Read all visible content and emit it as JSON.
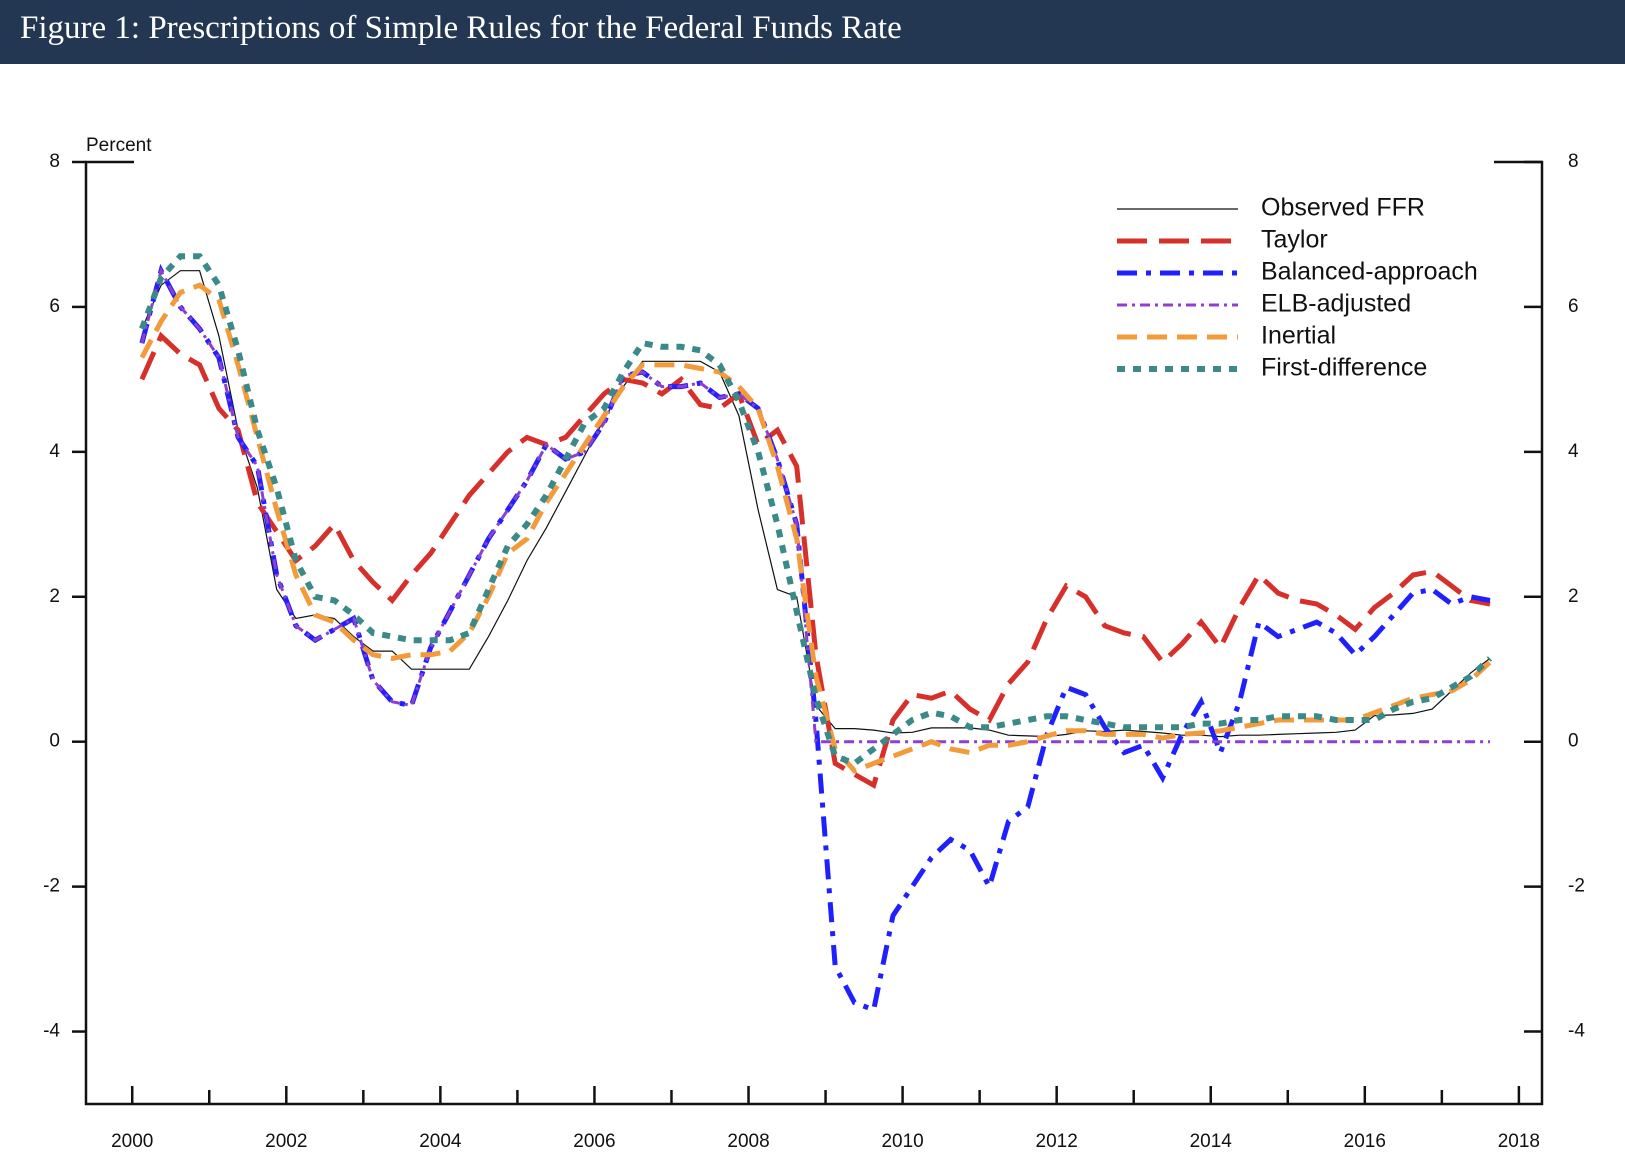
{
  "chart_data": {
    "type": "line",
    "title": "Figure 1: Prescriptions of Simple Rules for the Federal Funds Rate",
    "ylabel": "Percent",
    "xlim": [
      1999.4,
      2018.3
    ],
    "xticks": [
      2000,
      2002,
      2004,
      2006,
      2008,
      2010,
      2012,
      2014,
      2016,
      2018
    ],
    "xticks_minor": [
      2001,
      2003,
      2005,
      2007,
      2009,
      2011,
      2013,
      2015,
      2017
    ],
    "ylim": [
      -5,
      8
    ],
    "yticks": [
      -4,
      -2,
      0,
      2,
      4,
      6,
      8
    ],
    "legend": "upper right",
    "x": [
      2000.125,
      2000.375,
      2000.625,
      2000.875,
      2001.125,
      2001.375,
      2001.625,
      2001.875,
      2002.125,
      2002.375,
      2002.625,
      2002.875,
      2003.125,
      2003.375,
      2003.625,
      2003.875,
      2004.125,
      2004.375,
      2004.625,
      2004.875,
      2005.125,
      2005.375,
      2005.625,
      2005.875,
      2006.125,
      2006.375,
      2006.625,
      2006.875,
      2007.125,
      2007.375,
      2007.625,
      2007.875,
      2008.125,
      2008.375,
      2008.625,
      2008.875,
      2009.125,
      2009.375,
      2009.625,
      2009.875,
      2010.125,
      2010.375,
      2010.625,
      2010.875,
      2011.125,
      2011.375,
      2011.625,
      2011.875,
      2012.125,
      2012.375,
      2012.625,
      2012.875,
      2013.125,
      2013.375,
      2013.625,
      2013.875,
      2014.125,
      2014.375,
      2014.625,
      2014.875,
      2015.125,
      2015.375,
      2015.625,
      2015.875,
      2016.125,
      2016.375,
      2016.625,
      2016.875,
      2017.125,
      2017.375,
      2017.625
    ],
    "series": [
      {
        "name": "Observed FFR",
        "color": "#111111",
        "width": 1.2,
        "dash": "none",
        "values": [
          5.7,
          6.3,
          6.5,
          6.5,
          5.6,
          4.3,
          3.5,
          2.1,
          1.7,
          1.75,
          1.7,
          1.45,
          1.25,
          1.25,
          1.0,
          1.0,
          1.0,
          1.0,
          1.45,
          1.95,
          2.5,
          2.95,
          3.45,
          3.95,
          4.45,
          4.9,
          5.25,
          5.25,
          5.25,
          5.25,
          5.1,
          4.5,
          3.2,
          2.1,
          2.0,
          0.5,
          0.18,
          0.18,
          0.16,
          0.12,
          0.13,
          0.19,
          0.19,
          0.19,
          0.16,
          0.09,
          0.08,
          0.07,
          0.1,
          0.15,
          0.14,
          0.16,
          0.14,
          0.12,
          0.09,
          0.09,
          0.07,
          0.09,
          0.09,
          0.1,
          0.11,
          0.12,
          0.13,
          0.16,
          0.36,
          0.37,
          0.39,
          0.45,
          0.7,
          0.95,
          1.15
        ]
      },
      {
        "name": "Taylor",
        "color": "#d7302a",
        "width": 5,
        "dash": "30 12",
        "values": [
          5.0,
          5.6,
          5.35,
          5.2,
          4.6,
          4.3,
          3.3,
          2.9,
          2.5,
          2.7,
          3.0,
          2.5,
          2.2,
          1.95,
          2.3,
          2.6,
          3.0,
          3.4,
          3.7,
          4.0,
          4.2,
          4.1,
          4.2,
          4.5,
          4.8,
          5.0,
          4.95,
          4.8,
          5.0,
          4.65,
          4.6,
          4.8,
          4.1,
          4.3,
          3.8,
          1.2,
          -0.3,
          -0.45,
          -0.6,
          0.3,
          0.65,
          0.6,
          0.7,
          0.45,
          0.3,
          0.8,
          1.1,
          1.7,
          2.15,
          2.0,
          1.6,
          1.5,
          1.45,
          1.1,
          1.35,
          1.65,
          1.3,
          1.85,
          2.3,
          2.05,
          1.95,
          1.9,
          1.75,
          1.55,
          1.85,
          2.05,
          2.3,
          2.35,
          2.15,
          1.95,
          1.9
        ]
      },
      {
        "name": "Balanced-approach",
        "color": "#1f1fff",
        "width": 5,
        "dash": "20 9 5 9",
        "values": [
          5.5,
          6.5,
          6.0,
          5.7,
          5.3,
          4.2,
          3.8,
          2.3,
          1.6,
          1.4,
          1.55,
          1.7,
          0.85,
          0.55,
          0.5,
          1.3,
          1.8,
          2.3,
          2.8,
          3.2,
          3.6,
          4.1,
          3.9,
          4.0,
          4.4,
          5.05,
          5.1,
          4.9,
          4.9,
          4.95,
          4.75,
          4.8,
          4.6,
          3.9,
          3.0,
          0.3,
          -3.1,
          -3.6,
          -3.7,
          -2.4,
          -2.0,
          -1.6,
          -1.35,
          -1.5,
          -2.0,
          -1.1,
          -0.9,
          0.1,
          0.75,
          0.65,
          0.2,
          -0.15,
          -0.05,
          -0.5,
          0.1,
          0.55,
          -0.15,
          0.55,
          1.65,
          1.45,
          1.55,
          1.65,
          1.5,
          1.2,
          1.45,
          1.75,
          2.05,
          2.1,
          1.9,
          2.0,
          1.95
        ]
      },
      {
        "name": "ELB-adjusted",
        "color": "#8e3fd0",
        "width": 3,
        "dash": "10 5 3 5",
        "values": [
          5.5,
          6.5,
          6.0,
          5.7,
          5.3,
          4.2,
          3.8,
          2.3,
          1.6,
          1.4,
          1.55,
          1.7,
          0.85,
          0.55,
          0.5,
          1.3,
          1.8,
          2.3,
          2.8,
          3.2,
          3.6,
          4.1,
          3.9,
          4.0,
          4.4,
          5.05,
          5.1,
          4.9,
          4.9,
          4.95,
          4.75,
          4.8,
          4.6,
          3.9,
          3.0,
          0,
          0,
          0,
          0,
          0,
          0,
          0,
          0,
          0,
          0,
          0,
          0,
          0,
          0,
          0,
          0,
          0,
          0,
          0,
          0,
          0,
          0,
          0,
          0,
          0,
          0,
          0,
          0,
          0,
          0,
          0,
          0,
          0,
          0,
          0,
          0
        ]
      },
      {
        "name": "Inertial",
        "color": "#f39a3a",
        "width": 5,
        "dash": "20 10",
        "values": [
          5.3,
          5.8,
          6.2,
          6.3,
          6.1,
          5.2,
          4.2,
          3.2,
          2.3,
          1.75,
          1.65,
          1.4,
          1.2,
          1.15,
          1.2,
          1.2,
          1.25,
          1.5,
          2.0,
          2.6,
          2.8,
          3.3,
          3.7,
          4.1,
          4.5,
          4.9,
          5.2,
          5.2,
          5.2,
          5.15,
          5.1,
          4.9,
          4.6,
          3.8,
          2.8,
          0.9,
          -0.1,
          -0.4,
          -0.3,
          -0.2,
          -0.1,
          0.0,
          -0.1,
          -0.15,
          -0.05,
          -0.05,
          0.0,
          0.08,
          0.15,
          0.15,
          0.1,
          0.1,
          0.1,
          0.05,
          0.1,
          0.12,
          0.15,
          0.2,
          0.25,
          0.3,
          0.3,
          0.3,
          0.3,
          0.3,
          0.4,
          0.5,
          0.6,
          0.65,
          0.7,
          0.85,
          1.1
        ]
      },
      {
        "name": "First-difference",
        "color": "#3a8a8a",
        "width": 6,
        "dash": "8 8",
        "values": [
          5.7,
          6.4,
          6.7,
          6.7,
          6.3,
          5.4,
          4.3,
          3.5,
          2.5,
          2.0,
          1.95,
          1.75,
          1.5,
          1.45,
          1.4,
          1.4,
          1.4,
          1.5,
          2.1,
          2.7,
          3.0,
          3.4,
          3.9,
          4.4,
          4.6,
          5.1,
          5.5,
          5.45,
          5.45,
          5.4,
          5.2,
          4.7,
          4.0,
          3.0,
          1.8,
          0.6,
          -0.2,
          -0.3,
          -0.1,
          0.1,
          0.3,
          0.4,
          0.35,
          0.2,
          0.2,
          0.25,
          0.3,
          0.35,
          0.35,
          0.3,
          0.25,
          0.2,
          0.2,
          0.2,
          0.2,
          0.25,
          0.25,
          0.3,
          0.3,
          0.35,
          0.35,
          0.35,
          0.3,
          0.3,
          0.3,
          0.45,
          0.55,
          0.6,
          0.75,
          0.9,
          1.15
        ]
      }
    ]
  }
}
